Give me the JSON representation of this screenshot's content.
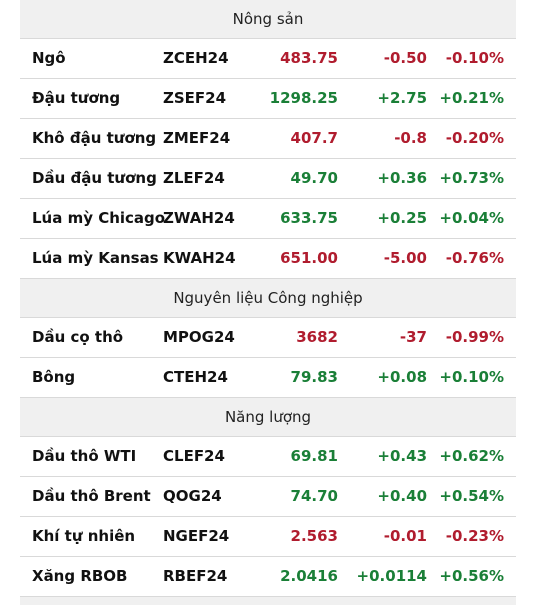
{
  "colors": {
    "up": "#1a7f37",
    "down": "#b01c2e",
    "header_bg": "#f0f0f0"
  },
  "sections": [
    {
      "title": "Nông sản",
      "rows": [
        {
          "name": "Ngô",
          "code": "ZCEH24",
          "price": "483.75",
          "change": "-0.50",
          "pct": "-0.10%",
          "dir": "down"
        },
        {
          "name": "Đậu tương",
          "code": "ZSEF24",
          "price": "1298.25",
          "change": "+2.75",
          "pct": "+0.21%",
          "dir": "up"
        },
        {
          "name": "Khô đậu tương",
          "code": "ZMEF24",
          "price": "407.7",
          "change": "-0.8",
          "pct": "-0.20%",
          "dir": "down"
        },
        {
          "name": "Dầu đậu tương",
          "code": "ZLEF24",
          "price": "49.70",
          "change": "+0.36",
          "pct": "+0.73%",
          "dir": "up"
        },
        {
          "name": "Lúa mỳ Chicago",
          "code": "ZWAH24",
          "price": "633.75",
          "change": "+0.25",
          "pct": "+0.04%",
          "dir": "up"
        },
        {
          "name": "Lúa mỳ Kansas",
          "code": "KWAH24",
          "price": "651.00",
          "change": "-5.00",
          "pct": "-0.76%",
          "dir": "down"
        }
      ]
    },
    {
      "title": "Nguyên liệu Công nghiệp",
      "rows": [
        {
          "name": "Dầu cọ thô",
          "code": "MPOG24",
          "price": "3682",
          "change": "-37",
          "pct": "-0.99%",
          "dir": "down"
        },
        {
          "name": "Bông",
          "code": "CTEH24",
          "price": "79.83",
          "change": "+0.08",
          "pct": "+0.10%",
          "dir": "up"
        }
      ]
    },
    {
      "title": "Năng lượng",
      "rows": [
        {
          "name": "Dầu thô WTI",
          "code": "CLEF24",
          "price": "69.81",
          "change": "+0.43",
          "pct": "+0.62%",
          "dir": "up"
        },
        {
          "name": "Dầu thô Brent",
          "code": "QOG24",
          "price": "74.70",
          "change": "+0.40",
          "pct": "+0.54%",
          "dir": "up"
        },
        {
          "name": "Khí tự nhiên",
          "code": "NGEF24",
          "price": "2.563",
          "change": "-0.01",
          "pct": "-0.23%",
          "dir": "down"
        },
        {
          "name": "Xăng RBOB",
          "code": "RBEF24",
          "price": "2.0416",
          "change": "+0.0114",
          "pct": "+0.56%",
          "dir": "up"
        }
      ]
    }
  ]
}
